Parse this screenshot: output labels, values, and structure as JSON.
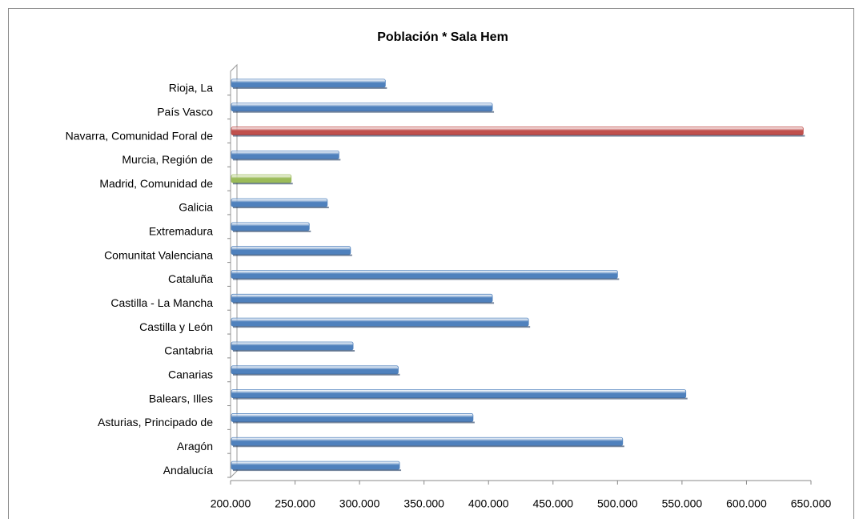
{
  "chart_data": {
    "type": "bar",
    "orientation": "horizontal",
    "title": "Población * Sala Hem",
    "categories": [
      "Andalucía",
      "Aragón",
      "Asturias, Principado de",
      "Balears, Illes",
      "Canarias",
      "Cantabria",
      "Castilla y León",
      "Castilla - La Mancha",
      "Cataluña",
      "Comunitat Valenciana",
      "Extremadura",
      "Galicia",
      "Madrid, Comunidad de",
      "Murcia, Región de",
      "Navarra, Comunidad  Foral de",
      "País Vasco",
      "Rioja, La"
    ],
    "values": [
      331000,
      504000,
      388000,
      553000,
      330000,
      295000,
      431000,
      403000,
      500000,
      293000,
      261000,
      275000,
      247000,
      284000,
      644000,
      403000,
      320000
    ],
    "colors": [
      "#4f81bd",
      "#4f81bd",
      "#4f81bd",
      "#4f81bd",
      "#4f81bd",
      "#4f81bd",
      "#4f81bd",
      "#4f81bd",
      "#4f81bd",
      "#4f81bd",
      "#4f81bd",
      "#4f81bd",
      "#9bbb59",
      "#4f81bd",
      "#c0504d",
      "#4f81bd",
      "#4f81bd"
    ],
    "xlim": [
      200000,
      650000
    ],
    "xticks": [
      {
        "value": 200000,
        "label": "200.000"
      },
      {
        "value": 250000,
        "label": "250.000"
      },
      {
        "value": 300000,
        "label": "300.000"
      },
      {
        "value": 350000,
        "label": "350.000"
      },
      {
        "value": 400000,
        "label": "400.000"
      },
      {
        "value": 450000,
        "label": "450.000"
      },
      {
        "value": 500000,
        "label": "500.000"
      },
      {
        "value": 550000,
        "label": "550.000"
      },
      {
        "value": 600000,
        "label": "600.000"
      },
      {
        "value": 650000,
        "label": "650.000"
      }
    ],
    "grid": false
  }
}
